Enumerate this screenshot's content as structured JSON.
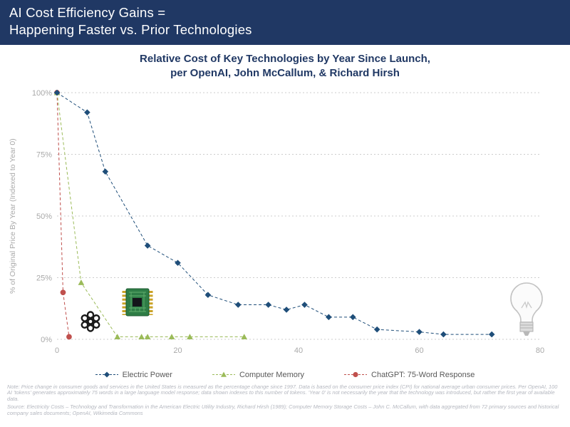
{
  "header": {
    "line1": "AI Cost Efficiency Gains =",
    "line2": "Happening Faster vs. Prior Technologies",
    "bg_color": "#203864",
    "text_color": "#FFFFFF"
  },
  "chart_data": {
    "type": "line",
    "title_line1": "Relative Cost of Key Technologies by Year Since Launch,",
    "title_line2": "per OpenAI, John McCallum, & Richard Hirsh",
    "ylabel": "% of Original Price By Year (Indexed to Year 0)",
    "xlabel": "",
    "xlim": [
      0,
      80
    ],
    "ylim": [
      0,
      100
    ],
    "x_ticks": [
      {
        "value": 0,
        "label": "0"
      },
      {
        "value": 20,
        "label": "20"
      },
      {
        "value": 40,
        "label": "40"
      },
      {
        "value": 60,
        "label": "60"
      },
      {
        "value": 80,
        "label": "80"
      }
    ],
    "y_ticks": [
      {
        "value": 0,
        "label": "0%"
      },
      {
        "value": 25,
        "label": "25%"
      },
      {
        "value": 50,
        "label": "50%"
      },
      {
        "value": 75,
        "label": "75%"
      },
      {
        "value": 100,
        "label": "100%"
      }
    ],
    "grid": "horizontal-dotted",
    "line_style": "dashed",
    "legend_position": "bottom",
    "axis_label_color": "#A9A9A9",
    "series": [
      {
        "name": "Electric Power",
        "color": "#1F4E79",
        "marker": "diamond",
        "points": [
          [
            0,
            100
          ],
          [
            5,
            92
          ],
          [
            8,
            68
          ],
          [
            15,
            38
          ],
          [
            20,
            31
          ],
          [
            25,
            18
          ],
          [
            30,
            14
          ],
          [
            35,
            14
          ],
          [
            38,
            12
          ],
          [
            41,
            14
          ],
          [
            45,
            9
          ],
          [
            49,
            9
          ],
          [
            53,
            4
          ],
          [
            60,
            3
          ],
          [
            64,
            2
          ],
          [
            72,
            2
          ]
        ]
      },
      {
        "name": "Computer Memory",
        "color": "#9BBB59",
        "marker": "triangle",
        "points": [
          [
            0,
            100
          ],
          [
            4,
            23
          ],
          [
            10,
            1
          ],
          [
            14,
            1
          ],
          [
            15,
            1
          ],
          [
            19,
            1
          ],
          [
            22,
            1
          ],
          [
            31,
            1
          ]
        ]
      },
      {
        "name": "ChatGPT: 75-Word Response",
        "color": "#C0504D",
        "marker": "circle",
        "points": [
          [
            0,
            100
          ],
          [
            1,
            19
          ],
          [
            2,
            1
          ]
        ]
      }
    ]
  },
  "icons": {
    "chatgpt_icon": "openai-logo",
    "memory_icon": "memory-chip",
    "electricity_icon": "light-bulb"
  },
  "notes": {
    "note": "Note: Price change in consumer goods and services in the United States is measured as the percentage change since 1997. Data is based on the consumer price index (CPI) for national average urban consumer prices. Per OpenAI, 100 AI 'tokens' generates approximately 75 words in a large language model response; data shown indexes to this number of tokens. 'Year 0' is not necessarily the year that the technology was introduced, but rather the first year of available data.",
    "source": "Source: Electricity Costs – Technology and Transformation in the American Electric Utility Industry, Richard Hirsh (1989); Computer Memory Storage Costs – John C. McCallum, with data aggregated from 72 primary sources and historical company sales documents; OpenAI, Wikimedia Commons"
  }
}
